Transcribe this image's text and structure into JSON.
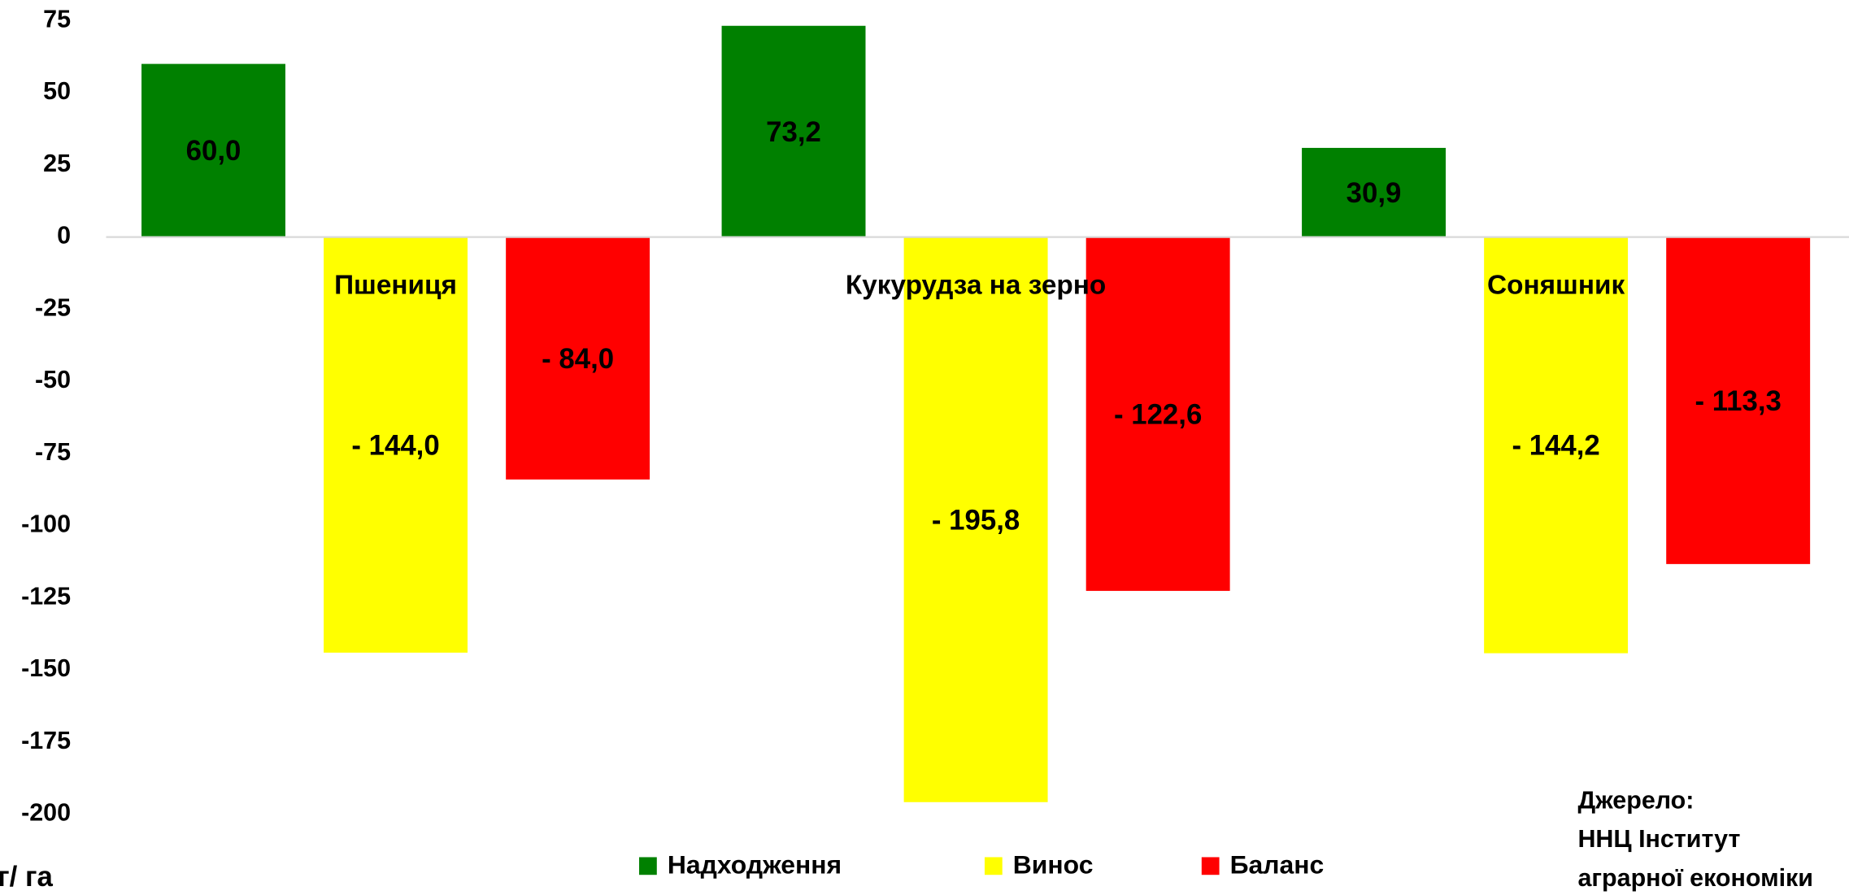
{
  "chart_data": {
    "type": "bar",
    "categories": [
      "Пшениця",
      "Кукурудза на зерно",
      "Соняшник"
    ],
    "series": [
      {
        "name": "Надходження",
        "color": "#008000",
        "values": [
          60.0,
          73.2,
          30.9
        ],
        "value_labels": [
          "60,0",
          "73,2",
          "30,9"
        ]
      },
      {
        "name": "Винос",
        "color": "#ffff00",
        "values": [
          -144.0,
          -195.8,
          -144.2
        ],
        "value_labels": [
          "- 144,0",
          "- 195,8",
          "- 144,2"
        ]
      },
      {
        "name": "Баланс",
        "color": "#ff0000",
        "values": [
          -84.0,
          -122.6,
          -113.3
        ],
        "value_labels": [
          "- 84,0",
          "- 122,6",
          "- 113,3"
        ]
      }
    ],
    "ylabel": "кг/ га",
    "ylim": [
      -200,
      75
    ],
    "yticks": [
      -200,
      -175,
      -150,
      -125,
      -100,
      -75,
      -50,
      -25,
      0,
      25,
      50,
      75
    ],
    "grid": false,
    "legend": "bottom",
    "source": [
      "Джерело:",
      "ННЦ Інститут",
      "аграрної економіки"
    ]
  }
}
